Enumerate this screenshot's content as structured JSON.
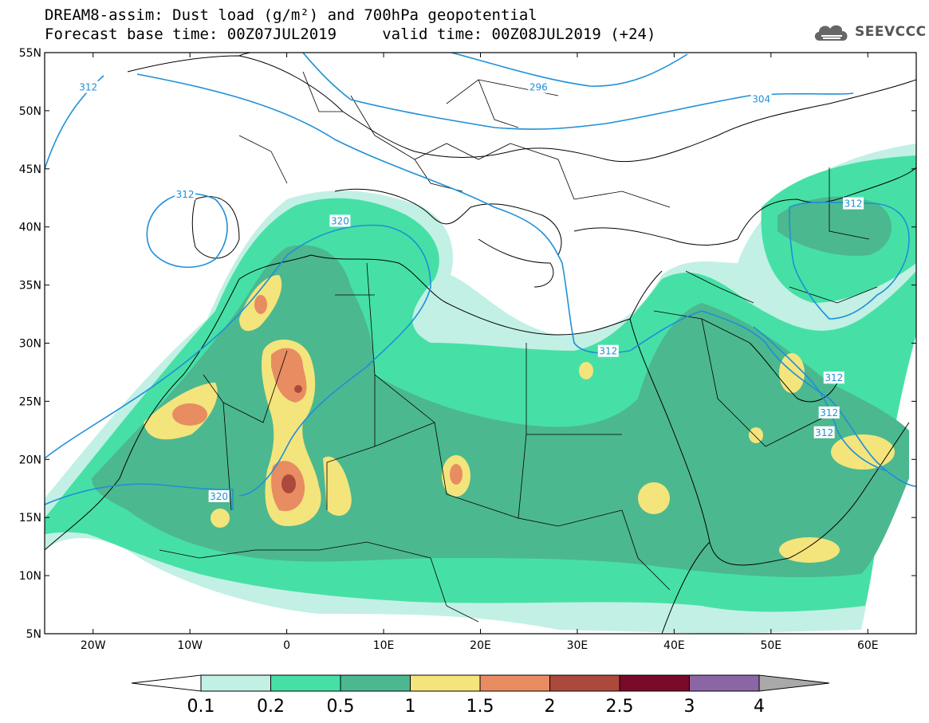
{
  "title_line1": "DREAM8-assim: Dust load (g/m²) and 700hPa geopotential",
  "title_line2": "Forecast base time: 00Z07JUL2019     valid time: 00Z08JUL2019 (+24)",
  "logo": {
    "text": "SEEVCCC",
    "icon": "cloud-logo-icon"
  },
  "map": {
    "lon_range": [
      -25,
      65
    ],
    "lat_range": [
      5,
      55
    ],
    "x_ticks": [
      {
        "lon": -20,
        "label": "20W"
      },
      {
        "lon": -10,
        "label": "10W"
      },
      {
        "lon": 0,
        "label": "0"
      },
      {
        "lon": 10,
        "label": "10E"
      },
      {
        "lon": 20,
        "label": "20E"
      },
      {
        "lon": 30,
        "label": "30E"
      },
      {
        "lon": 40,
        "label": "40E"
      },
      {
        "lon": 50,
        "label": "50E"
      },
      {
        "lon": 60,
        "label": "60E"
      }
    ],
    "y_ticks": [
      {
        "lat": 55,
        "label": "55N"
      },
      {
        "lat": 50,
        "label": "50N"
      },
      {
        "lat": 45,
        "label": "45N"
      },
      {
        "lat": 40,
        "label": "40N"
      },
      {
        "lat": 35,
        "label": "35N"
      },
      {
        "lat": 30,
        "label": "30N"
      },
      {
        "lat": 25,
        "label": "25N"
      },
      {
        "lat": 20,
        "label": "20N"
      },
      {
        "lat": 15,
        "label": "15N"
      },
      {
        "lat": 10,
        "label": "10N"
      },
      {
        "lat": 5,
        "label": "5N"
      }
    ],
    "contour_labels": [
      {
        "text": "312",
        "lon": -20.5,
        "lat": 52
      },
      {
        "text": "296",
        "lon": 26,
        "lat": 52
      },
      {
        "text": "304",
        "lon": 49,
        "lat": 51
      },
      {
        "text": "312",
        "lon": -10.5,
        "lat": 42.8
      },
      {
        "text": "320",
        "lon": 5.5,
        "lat": 40.5
      },
      {
        "text": "312",
        "lon": 58.5,
        "lat": 42
      },
      {
        "text": "312",
        "lon": 33.2,
        "lat": 29.3
      },
      {
        "text": "312",
        "lon": 56.5,
        "lat": 27
      },
      {
        "text": "312",
        "lon": 56,
        "lat": 24
      },
      {
        "text": "312",
        "lon": 55.5,
        "lat": 22.3
      },
      {
        "text": "320",
        "lon": -7,
        "lat": 16.8
      }
    ]
  },
  "colorbar": {
    "levels": [
      "0.1",
      "0.2",
      "0.5",
      "1",
      "1.5",
      "2",
      "2.5",
      "3",
      "4"
    ],
    "colors": [
      "#c2f0e4",
      "#46e0a6",
      "#4cb88f",
      "#f4e47c",
      "#e88c62",
      "#ab4a3c",
      "#7a0a2a",
      "#8a67a4",
      "#a9a9a9"
    ],
    "under_color": "#ffffff"
  },
  "colors": {
    "land_bg": "#ffffff",
    "contour": "#1f8fd8",
    "boundary": "#000000"
  }
}
